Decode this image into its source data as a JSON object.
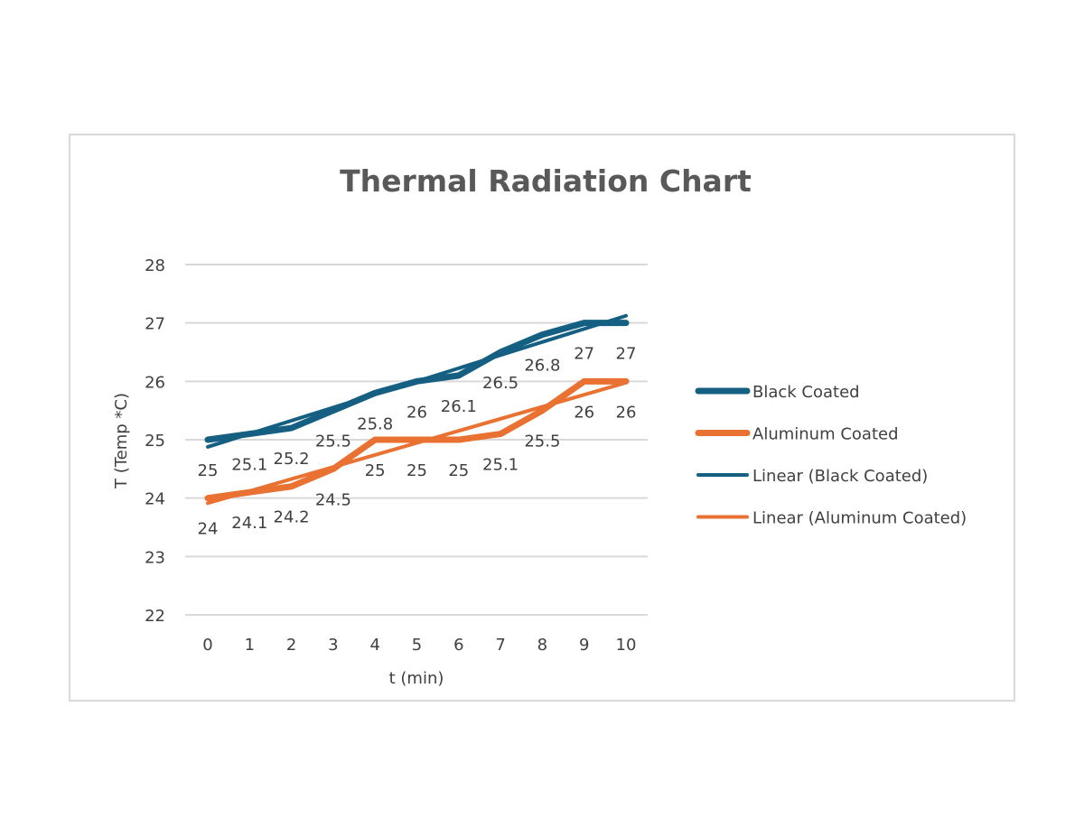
{
  "chart_data": {
    "type": "line",
    "title": "Thermal Radiation Chart",
    "xlabel": "t (min)",
    "ylabel": "T (Temp *C)",
    "x": [
      0,
      1,
      2,
      3,
      4,
      5,
      6,
      7,
      8,
      9,
      10
    ],
    "ylim": [
      22,
      28
    ],
    "yticks": [
      22,
      23,
      24,
      25,
      26,
      27,
      28
    ],
    "grid": true,
    "legend_position": "right",
    "series": [
      {
        "name": "Black Coated",
        "color": "#156082",
        "values": [
          25,
          25.1,
          25.2,
          25.5,
          25.8,
          26,
          26.1,
          26.5,
          26.8,
          27,
          27
        ],
        "data_labels": true
      },
      {
        "name": "Aluminum Coated",
        "color": "#e97132",
        "values": [
          24,
          24.1,
          24.2,
          24.5,
          25,
          25,
          25,
          25.1,
          25.5,
          26,
          26
        ],
        "data_labels": true
      }
    ],
    "trendlines": [
      {
        "name": "Linear (Black Coated)",
        "of": 0,
        "type": "linear",
        "color": "#156082"
      },
      {
        "name": "Linear (Aluminum Coated)",
        "of": 1,
        "type": "linear",
        "color": "#e97132"
      }
    ]
  }
}
